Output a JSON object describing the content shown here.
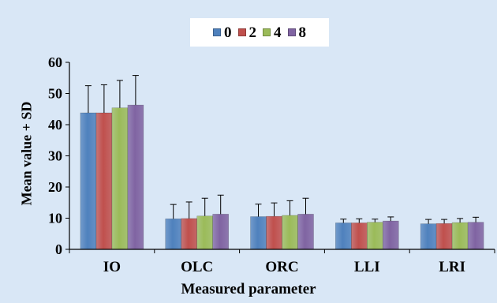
{
  "chart_data": {
    "type": "bar",
    "title": "",
    "xlabel": "Measured parameter",
    "ylabel": "Mean value + SD",
    "categories": [
      "IO",
      "OLC",
      "ORC",
      "LLI",
      "LRI"
    ],
    "ylim": [
      0,
      60
    ],
    "yticks": [
      0,
      10,
      20,
      30,
      40,
      50,
      60
    ],
    "grid": false,
    "legend_position": "top-center",
    "series": [
      {
        "name": "0",
        "color": "#4f81bd",
        "values": [
          43.8,
          9.8,
          10.5,
          8.5,
          8.2
        ],
        "sd": [
          8.7,
          4.6,
          4.0,
          1.2,
          1.4
        ]
      },
      {
        "name": "2",
        "color": "#c0504d",
        "values": [
          43.8,
          9.9,
          10.6,
          8.5,
          8.3
        ],
        "sd": [
          9.0,
          5.3,
          4.3,
          1.3,
          1.3
        ]
      },
      {
        "name": "4",
        "color": "#9bbb59",
        "values": [
          45.4,
          10.7,
          10.9,
          8.7,
          8.6
        ],
        "sd": [
          8.8,
          5.7,
          4.7,
          1.0,
          1.3
        ]
      },
      {
        "name": "8",
        "color": "#8064a2",
        "values": [
          46.3,
          11.3,
          11.3,
          9.1,
          8.7
        ],
        "sd": [
          9.5,
          6.1,
          5.1,
          1.3,
          1.6
        ]
      }
    ]
  }
}
